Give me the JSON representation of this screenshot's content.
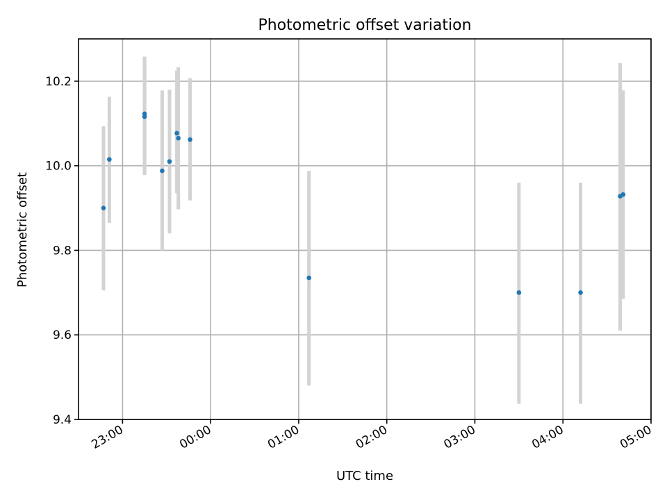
{
  "chart_data": {
    "type": "scatter",
    "title": "Photometric offset variation",
    "xlabel": "UTC time",
    "ylabel": "Photometric offset",
    "grid": true,
    "x_ticks": [
      "23:00",
      "00:00",
      "01:00",
      "02:00",
      "03:00",
      "04:00",
      "05:00"
    ],
    "y_ticks": [
      "9.4",
      "9.6",
      "9.8",
      "10.0",
      "10.2"
    ],
    "xlim": [
      "22:30",
      "05:00"
    ],
    "ylim": [
      9.4,
      10.3
    ],
    "colors": {
      "points": "#1f77b4",
      "error_bars": "#d3d3d3"
    },
    "series": [
      {
        "time": [
          "22:47",
          "22:51",
          "23:15",
          "23:15",
          "23:27",
          "23:32",
          "23:37",
          "23:38",
          "23:46",
          "01:07",
          "03:30",
          "04:12",
          "04:39",
          "04:41"
        ],
        "values": [
          9.9,
          10.015,
          10.123,
          10.116,
          9.988,
          10.01,
          10.077,
          10.065,
          10.062,
          9.735,
          9.7,
          9.7,
          9.928,
          9.932
        ],
        "lower": [
          9.705,
          9.865,
          9.978,
          9.978,
          9.8,
          9.84,
          9.935,
          9.897,
          9.918,
          9.48,
          9.437,
          9.437,
          9.61,
          9.685
        ],
        "upper": [
          10.093,
          10.163,
          10.258,
          10.258,
          10.178,
          10.18,
          10.225,
          10.233,
          10.207,
          9.988,
          9.96,
          9.96,
          10.243,
          10.178
        ]
      }
    ]
  }
}
